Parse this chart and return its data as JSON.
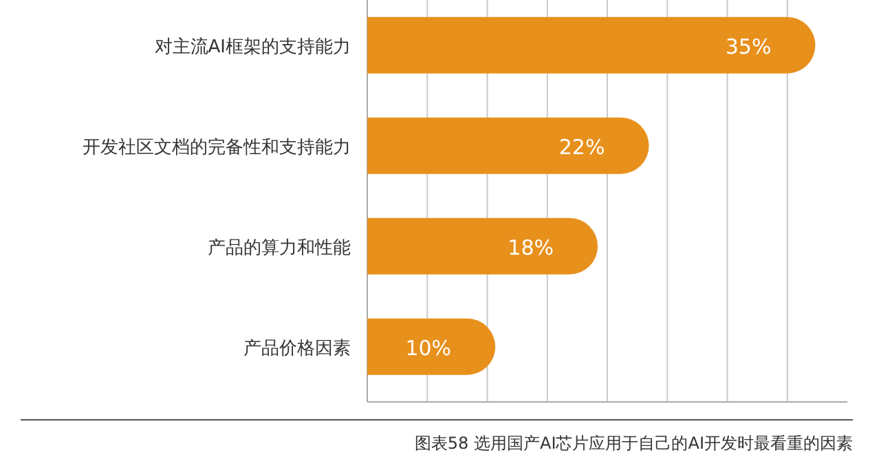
{
  "chart_data": {
    "type": "bar",
    "orientation": "horizontal",
    "categories": [
      "对主流AI框架的支持能力",
      "开发社区文档的完备性和支持能力",
      "产品的算力和性能",
      "产品价格因素"
    ],
    "values": [
      35,
      22,
      18,
      10
    ],
    "value_labels": [
      "35%",
      "22%",
      "18%",
      "10%"
    ],
    "color": "#e8901c",
    "xlim": [
      0,
      37.5
    ],
    "xticks": [
      {
        "value": 4.6875,
        "label": null
      },
      {
        "value": 9.375,
        "label": null
      },
      {
        "value": 14.0625,
        "label": null
      },
      {
        "value": 18.75,
        "label": null
      },
      {
        "value": 23.4375,
        "label": null
      },
      {
        "value": 28.125,
        "label": null
      },
      {
        "value": 32.8125,
        "label": null
      }
    ],
    "grid": "x",
    "annotations": [
      "图表58  选用国产AI芯片应用于自己的AI开发时最看重的因素"
    ]
  }
}
